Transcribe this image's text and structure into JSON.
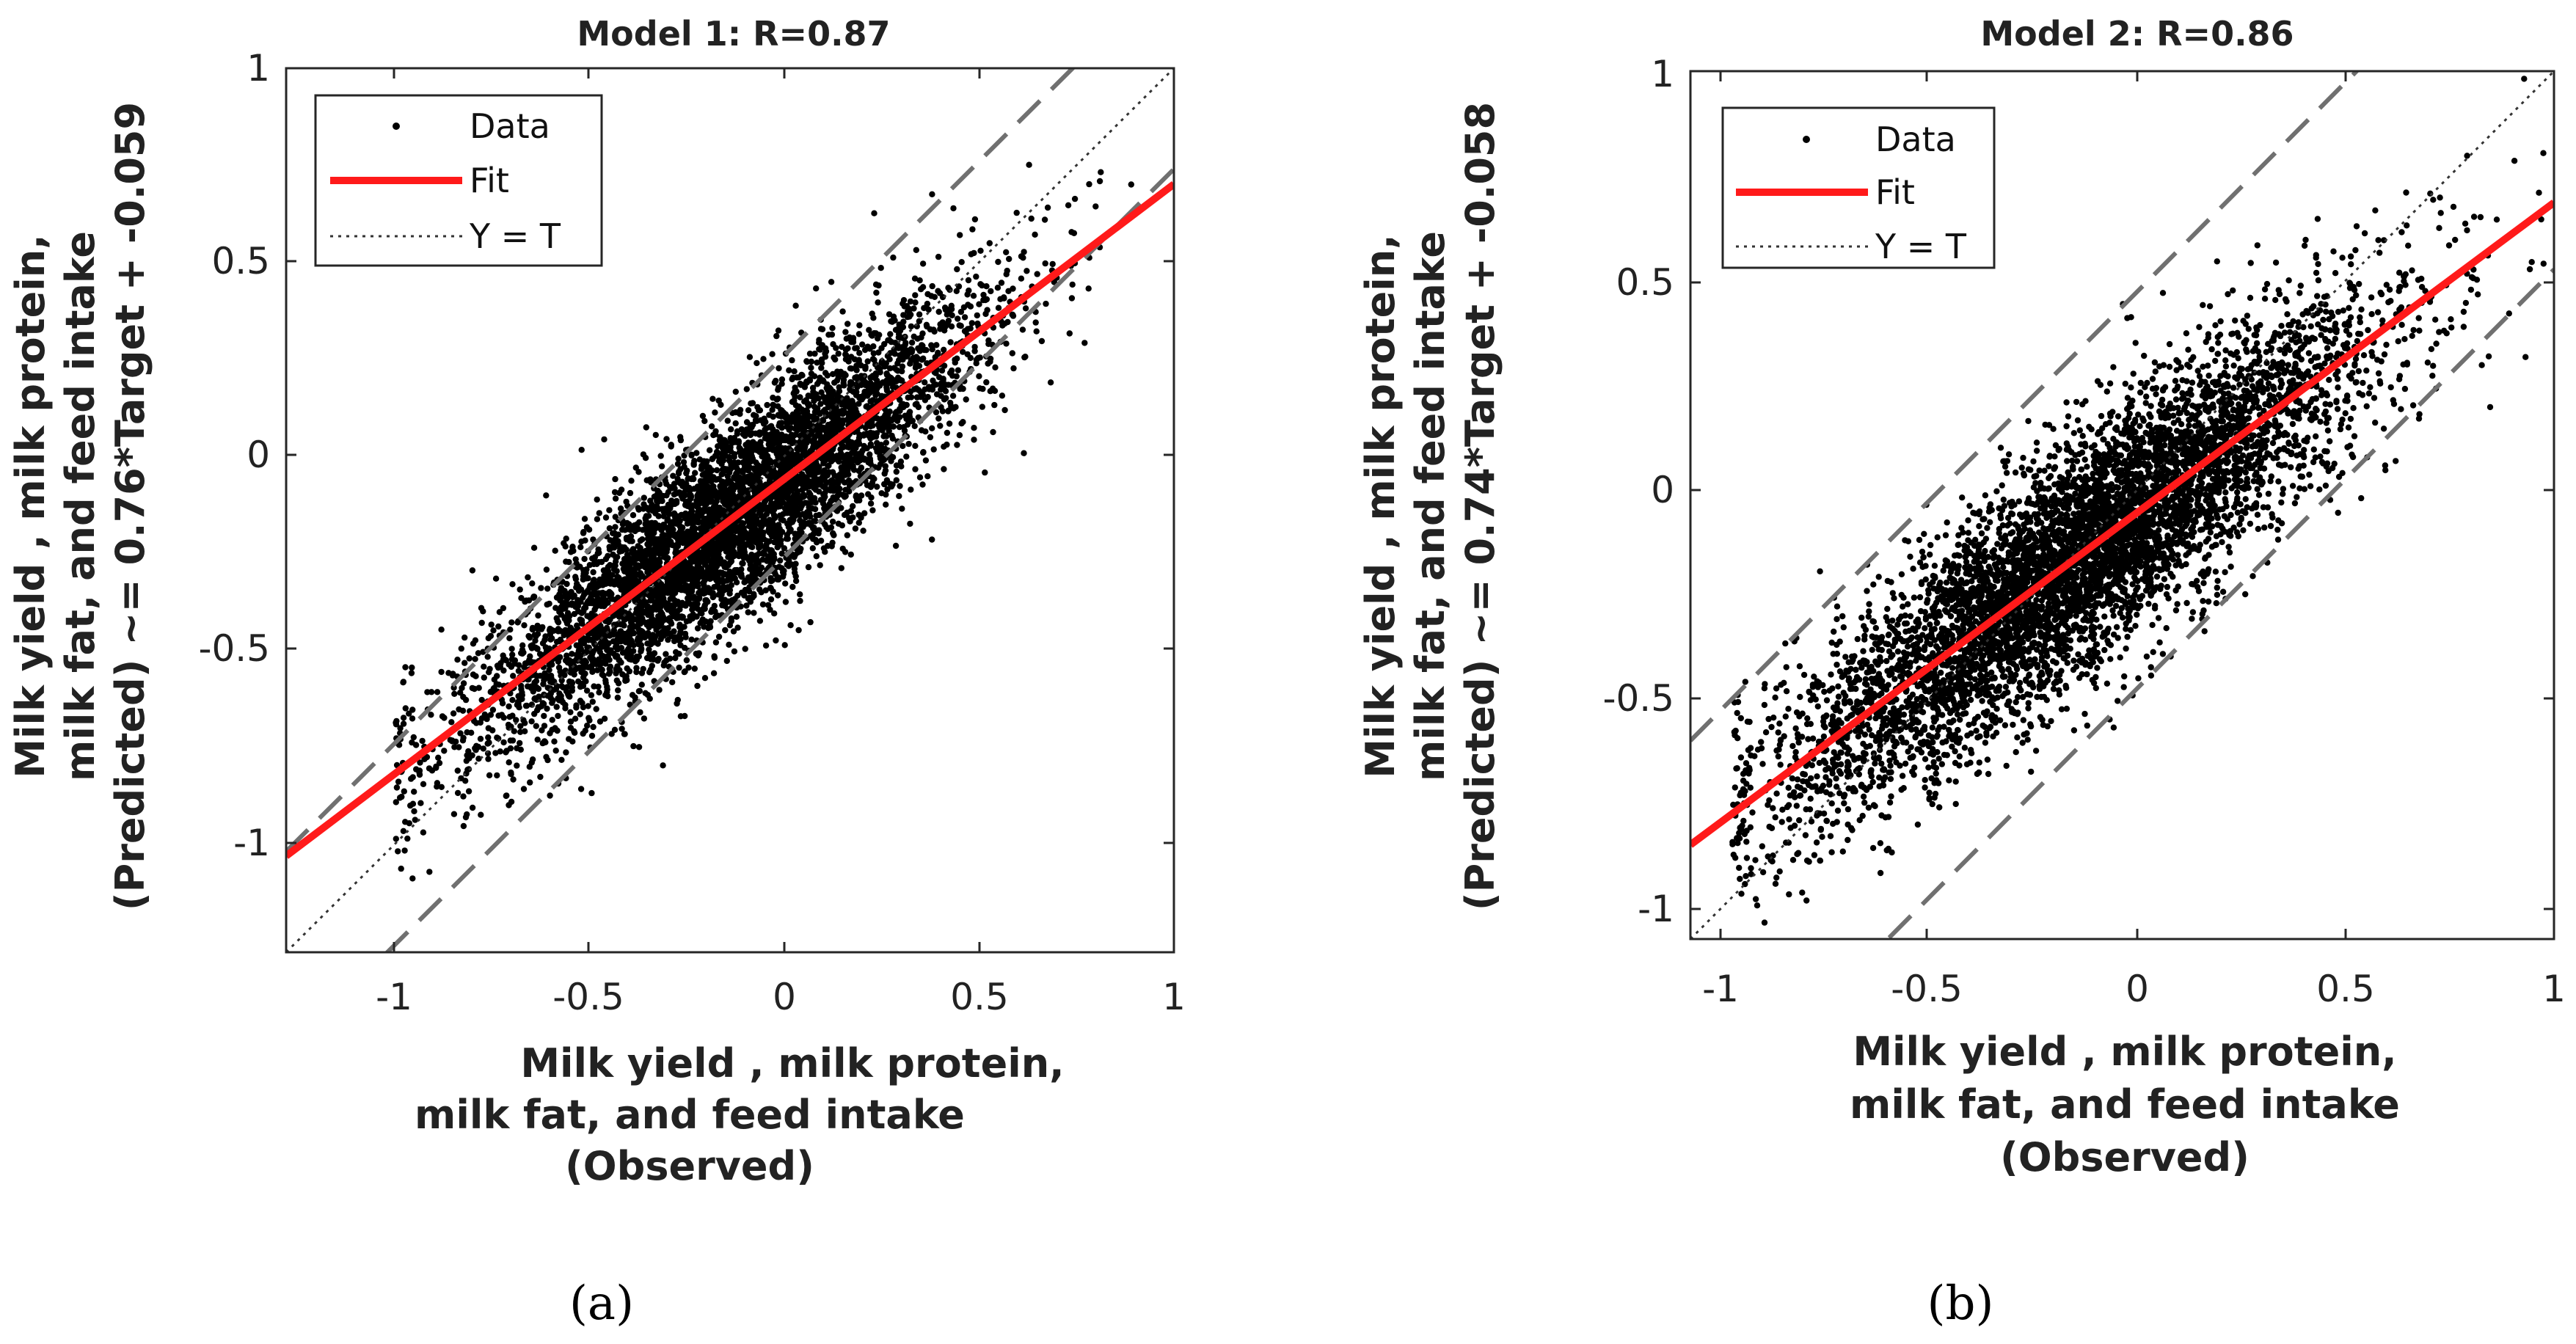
{
  "chart_data": [
    {
      "type": "scatter",
      "panel_label": "(a)",
      "title": "Model 1: R=0.87",
      "xlabel": [
        "Milk yield , milk protein,",
        "milk fat, and feed intake",
        "(Observed)"
      ],
      "ylabel": [
        "Milk yield , milk protein,",
        "milk fat, and feed intake",
        "(Predicted)  ~= 0.76*Target + -0.059"
      ],
      "xlim": [
        -1.28,
        1.0
      ],
      "ylim": [
        -1.28,
        1.0
      ],
      "xticks": [
        -1,
        -0.5,
        0,
        0.5,
        1
      ],
      "xtick_labels": [
        "-1",
        "-0.5",
        "0",
        "0.5",
        "1"
      ],
      "yticks": [
        -1,
        -0.5,
        0,
        0.5,
        1
      ],
      "ytick_labels": [
        "-1",
        "-0.5",
        "0",
        "0.5",
        "1"
      ],
      "fit": {
        "slope": 0.76,
        "intercept": -0.059
      },
      "identity": {
        "slope": 1,
        "intercept": 0
      },
      "band_offset": 0.26,
      "scatter": {
        "x_range": [
          -1.0,
          0.98
        ],
        "x_mean": -0.15,
        "x_sd": 0.32,
        "noise_sd": 0.13,
        "n_points": 5500
      },
      "legend": {
        "position": "top-left",
        "entries": [
          "Data",
          "Fit",
          "Y = T"
        ]
      },
      "colors": {
        "data": "#000000",
        "fit": "#ff1a1a",
        "identity": "#333333",
        "band": "#707070"
      }
    },
    {
      "type": "scatter",
      "panel_label": "(b)",
      "title": "Model 2: R=0.86",
      "xlabel": [
        "Milk yield , milk protein,",
        "milk fat, and feed intake",
        "(Observed)"
      ],
      "ylabel": [
        "Milk yield , milk protein,",
        "milk fat, and feed intake",
        "(Predicted)  ~= 0.74*Target + -0.058"
      ],
      "xlim": [
        -1.1,
        1.0
      ],
      "ylim": [
        -1.1,
        1.0
      ],
      "xticks": [
        -1,
        -0.5,
        0,
        0.5,
        1
      ],
      "xtick_labels": [
        "-1",
        "-0.5",
        "0",
        "0.5",
        "1"
      ],
      "yticks": [
        -1,
        -0.5,
        0,
        0.5,
        1
      ],
      "ytick_labels": [
        "-1",
        "-0.5",
        "0",
        "0.5",
        "1"
      ],
      "fit": {
        "slope": 0.74,
        "intercept": -0.058
      },
      "identity": {
        "slope": 1,
        "intercept": 0
      },
      "band_offset": 0.48,
      "scatter": {
        "x_range": [
          -1.0,
          0.98
        ],
        "x_mean": -0.15,
        "x_sd": 0.35,
        "noise_sd": 0.14,
        "n_points": 6000
      },
      "legend": {
        "position": "top-left",
        "entries": [
          "Data",
          "Fit",
          "Y = T"
        ]
      },
      "colors": {
        "data": "#000000",
        "fit": "#ff1a1a",
        "identity": "#333333",
        "band": "#707070"
      }
    }
  ]
}
